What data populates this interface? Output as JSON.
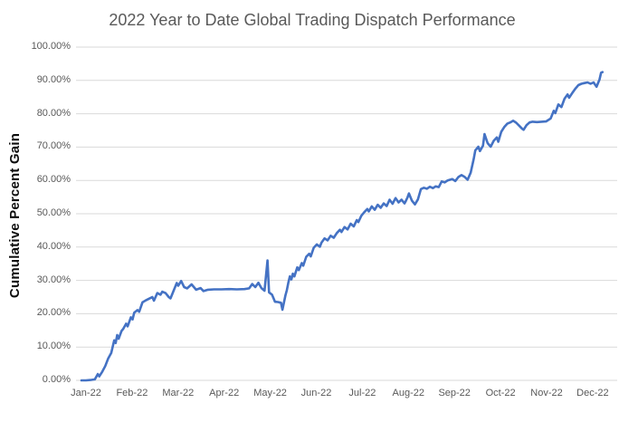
{
  "chart_data": {
    "type": "line",
    "title": "2022 Year to Date Global Trading Dispatch Performance",
    "xlabel": "",
    "ylabel": "Cumulative Percent Gain",
    "x_tick_labels": [
      "Jan-22",
      "Feb-22",
      "Mar-22",
      "Apr-22",
      "May-22",
      "Jun-22",
      "Jul-22",
      "Aug-22",
      "Sep-22",
      "Oct-22",
      "Nov-22",
      "Dec-22"
    ],
    "y_tick_labels": [
      "0.00%",
      "10.00%",
      "20.00%",
      "30.00%",
      "40.00%",
      "50.00%",
      "60.00%",
      "70.00%",
      "80.00%",
      "90.00%",
      "100.00%"
    ],
    "ylim": [
      0,
      100
    ],
    "y_tick_step_percent": 10,
    "grid": "horizontal",
    "legend_position": "none",
    "line_color": "#4472C4",
    "series": [
      {
        "name": "Cumulative Percent Gain",
        "x_unit": "day_of_year_2022",
        "y_unit": "percent",
        "points": [
          [
            0,
            0.0
          ],
          [
            3,
            0.0
          ],
          [
            6,
            0.1
          ],
          [
            9,
            0.3
          ],
          [
            11,
            1.9
          ],
          [
            12,
            1.2
          ],
          [
            14,
            2.6
          ],
          [
            16,
            4.3
          ],
          [
            18,
            6.6
          ],
          [
            20,
            8.2
          ],
          [
            22,
            12.0
          ],
          [
            23,
            11.2
          ],
          [
            24,
            13.6
          ],
          [
            25,
            12.5
          ],
          [
            27,
            14.9
          ],
          [
            28,
            15.4
          ],
          [
            30,
            17.0
          ],
          [
            31,
            16.2
          ],
          [
            33,
            18.9
          ],
          [
            34,
            18.3
          ],
          [
            35,
            20.3
          ],
          [
            37,
            21.1
          ],
          [
            38,
            20.6
          ],
          [
            40,
            23.4
          ],
          [
            42,
            24.0
          ],
          [
            44,
            24.5
          ],
          [
            46,
            25.0
          ],
          [
            47,
            23.9
          ],
          [
            49,
            26.2
          ],
          [
            51,
            25.7
          ],
          [
            52,
            26.6
          ],
          [
            54,
            26.2
          ],
          [
            56,
            25.0
          ],
          [
            57,
            24.6
          ],
          [
            59,
            27.0
          ],
          [
            61,
            29.2
          ],
          [
            62,
            28.4
          ],
          [
            64,
            29.8
          ],
          [
            66,
            28.0
          ],
          [
            68,
            27.6
          ],
          [
            71,
            28.8
          ],
          [
            74,
            27.2
          ],
          [
            77,
            27.7
          ],
          [
            79,
            26.8
          ],
          [
            82,
            27.2
          ],
          [
            86,
            27.3
          ],
          [
            91,
            27.3
          ],
          [
            96,
            27.4
          ],
          [
            101,
            27.3
          ],
          [
            106,
            27.4
          ],
          [
            109,
            27.6
          ],
          [
            111,
            28.9
          ],
          [
            113,
            28.0
          ],
          [
            115,
            29.3
          ],
          [
            117,
            27.7
          ],
          [
            119,
            26.9
          ],
          [
            121,
            36.0
          ],
          [
            122,
            26.4
          ],
          [
            124,
            25.7
          ],
          [
            126,
            23.6
          ],
          [
            128,
            23.5
          ],
          [
            130,
            23.3
          ],
          [
            131,
            21.2
          ],
          [
            133,
            25.5
          ],
          [
            134,
            27.1
          ],
          [
            135,
            29.4
          ],
          [
            136,
            31.2
          ],
          [
            137,
            30.3
          ],
          [
            138,
            32.0
          ],
          [
            139,
            31.2
          ],
          [
            141,
            33.9
          ],
          [
            142,
            33.1
          ],
          [
            144,
            35.2
          ],
          [
            145,
            34.4
          ],
          [
            147,
            37.1
          ],
          [
            149,
            38.0
          ],
          [
            150,
            37.2
          ],
          [
            152,
            39.8
          ],
          [
            154,
            40.8
          ],
          [
            156,
            40.1
          ],
          [
            157,
            41.3
          ],
          [
            159,
            42.6
          ],
          [
            161,
            42.0
          ],
          [
            163,
            43.4
          ],
          [
            165,
            42.8
          ],
          [
            167,
            44.2
          ],
          [
            169,
            45.2
          ],
          [
            170,
            44.5
          ],
          [
            172,
            46.0
          ],
          [
            174,
            45.3
          ],
          [
            176,
            47.0
          ],
          [
            178,
            46.2
          ],
          [
            180,
            48.1
          ],
          [
            181,
            47.5
          ],
          [
            183,
            49.4
          ],
          [
            185,
            50.5
          ],
          [
            187,
            51.4
          ],
          [
            188,
            50.7
          ],
          [
            190,
            52.2
          ],
          [
            192,
            51.2
          ],
          [
            194,
            52.7
          ],
          [
            196,
            51.8
          ],
          [
            198,
            53.1
          ],
          [
            200,
            52.3
          ],
          [
            202,
            54.2
          ],
          [
            204,
            53.0
          ],
          [
            206,
            54.7
          ],
          [
            208,
            53.4
          ],
          [
            210,
            54.2
          ],
          [
            212,
            53.1
          ],
          [
            213,
            53.9
          ],
          [
            214,
            54.9
          ],
          [
            215,
            56.1
          ],
          [
            217,
            53.9
          ],
          [
            219,
            52.8
          ],
          [
            221,
            54.3
          ],
          [
            223,
            57.4
          ],
          [
            225,
            57.8
          ],
          [
            227,
            57.5
          ],
          [
            229,
            58.1
          ],
          [
            231,
            57.7
          ],
          [
            233,
            58.2
          ],
          [
            235,
            58.0
          ],
          [
            237,
            59.7
          ],
          [
            239,
            59.4
          ],
          [
            241,
            60.0
          ],
          [
            244,
            60.4
          ],
          [
            246,
            59.8
          ],
          [
            248,
            61.0
          ],
          [
            250,
            61.6
          ],
          [
            252,
            61.1
          ],
          [
            254,
            60.2
          ],
          [
            256,
            62.3
          ],
          [
            258,
            66.5
          ],
          [
            259,
            69.0
          ],
          [
            261,
            70.1
          ],
          [
            262,
            68.8
          ],
          [
            264,
            70.4
          ],
          [
            265,
            73.9
          ],
          [
            267,
            71.2
          ],
          [
            269,
            70.1
          ],
          [
            271,
            71.9
          ],
          [
            273,
            72.9
          ],
          [
            274,
            71.6
          ],
          [
            276,
            74.6
          ],
          [
            278,
            76.0
          ],
          [
            280,
            77.0
          ],
          [
            282,
            77.4
          ],
          [
            284,
            77.9
          ],
          [
            286,
            77.3
          ],
          [
            288,
            76.4
          ],
          [
            290,
            75.5
          ],
          [
            291,
            75.2
          ],
          [
            293,
            76.6
          ],
          [
            295,
            77.4
          ],
          [
            297,
            77.6
          ],
          [
            300,
            77.5
          ],
          [
            303,
            77.6
          ],
          [
            306,
            77.7
          ],
          [
            309,
            78.6
          ],
          [
            311,
            80.9
          ],
          [
            312,
            80.2
          ],
          [
            314,
            82.8
          ],
          [
            316,
            82.0
          ],
          [
            318,
            84.5
          ],
          [
            320,
            85.8
          ],
          [
            321,
            84.8
          ],
          [
            323,
            86.2
          ],
          [
            325,
            87.5
          ],
          [
            327,
            88.6
          ],
          [
            329,
            89.0
          ],
          [
            331,
            89.2
          ],
          [
            333,
            89.4
          ],
          [
            335,
            89.0
          ],
          [
            337,
            89.4
          ],
          [
            339,
            88.1
          ],
          [
            341,
            90.3
          ],
          [
            342,
            92.3
          ],
          [
            343,
            92.5
          ]
        ]
      }
    ]
  },
  "colors": {
    "background": "#ffffff",
    "title_text": "#595959",
    "axis_tick_text": "#595959",
    "y_axis_title_text": "#0d0d0d",
    "gridline": "#d9d9d9",
    "series_line": "#4472C4"
  }
}
